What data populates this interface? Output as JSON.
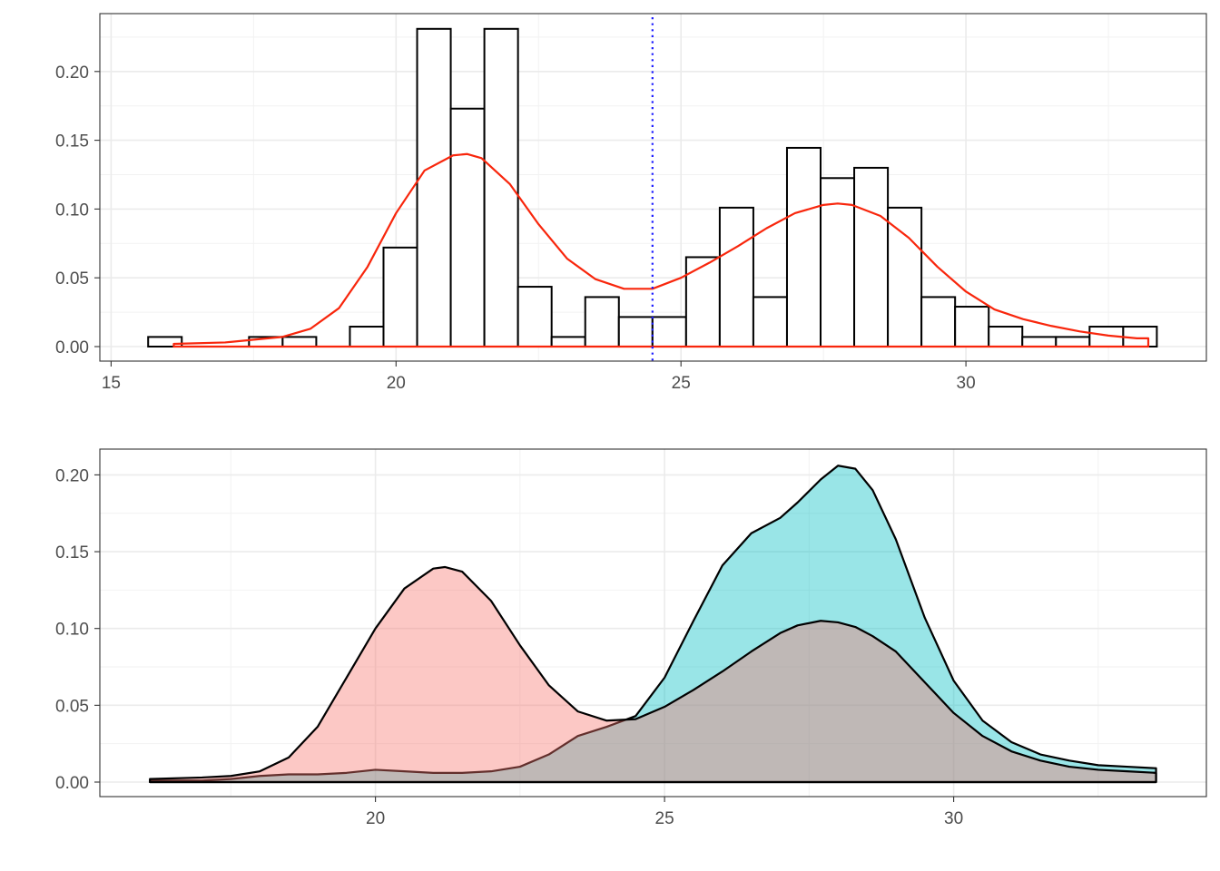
{
  "chart_data": [
    {
      "type": "bar",
      "subtype": "histogram",
      "panel": "top",
      "title": "",
      "xlabel": "",
      "ylabel": "",
      "xlim": [
        15,
        33.5
      ],
      "ylim": [
        0,
        0.23
      ],
      "grid": true,
      "bin_width": 0.59,
      "bins": [
        {
          "x0": 15.65,
          "value": 0.007
        },
        {
          "x0": 17.42,
          "value": 0.007
        },
        {
          "x0": 18.01,
          "value": 0.007
        },
        {
          "x0": 19.19,
          "value": 0.0145
        },
        {
          "x0": 19.78,
          "value": 0.072
        },
        {
          "x0": 20.37,
          "value": 0.231
        },
        {
          "x0": 20.96,
          "value": 0.173
        },
        {
          "x0": 21.55,
          "value": 0.231
        },
        {
          "x0": 22.14,
          "value": 0.0435
        },
        {
          "x0": 22.73,
          "value": 0.007
        },
        {
          "x0": 23.32,
          "value": 0.036
        },
        {
          "x0": 23.91,
          "value": 0.0215
        },
        {
          "x0": 24.5,
          "value": 0.0215
        },
        {
          "x0": 25.09,
          "value": 0.065
        },
        {
          "x0": 25.68,
          "value": 0.101
        },
        {
          "x0": 26.27,
          "value": 0.036
        },
        {
          "x0": 26.86,
          "value": 0.1445
        },
        {
          "x0": 27.45,
          "value": 0.1225
        },
        {
          "x0": 28.04,
          "value": 0.13
        },
        {
          "x0": 28.63,
          "value": 0.101
        },
        {
          "x0": 29.22,
          "value": 0.036
        },
        {
          "x0": 29.81,
          "value": 0.029
        },
        {
          "x0": 30.4,
          "value": 0.0145
        },
        {
          "x0": 30.99,
          "value": 0.007
        },
        {
          "x0": 31.58,
          "value": 0.007
        },
        {
          "x0": 32.17,
          "value": 0.0145
        },
        {
          "x0": 32.76,
          "value": 0.0145
        }
      ],
      "density_curve": {
        "color": "#f8260c",
        "x": [
          16.1,
          17.0,
          18.0,
          18.5,
          19.0,
          19.5,
          20.0,
          20.5,
          21.0,
          21.25,
          21.5,
          22.0,
          22.5,
          23.0,
          23.5,
          24.0,
          24.5,
          25.0,
          25.5,
          26.0,
          26.5,
          27.0,
          27.5,
          27.75,
          28.0,
          28.5,
          29.0,
          29.5,
          30.0,
          30.5,
          31.0,
          31.5,
          32.0,
          32.5,
          33.0,
          33.2
        ],
        "y": [
          0.002,
          0.003,
          0.007,
          0.013,
          0.028,
          0.058,
          0.097,
          0.128,
          0.139,
          0.14,
          0.137,
          0.118,
          0.089,
          0.064,
          0.049,
          0.042,
          0.042,
          0.05,
          0.061,
          0.073,
          0.086,
          0.097,
          0.103,
          0.104,
          0.103,
          0.095,
          0.079,
          0.058,
          0.04,
          0.027,
          0.02,
          0.015,
          0.011,
          0.008,
          0.006,
          0.006
        ]
      },
      "vline": {
        "x": 24.5,
        "color": "#1a1aff",
        "style": "dotted"
      },
      "x_ticks": [
        "15",
        "20",
        "25",
        "30"
      ],
      "y_ticks": [
        "0.00",
        "0.05",
        "0.10",
        "0.15",
        "0.20"
      ]
    },
    {
      "type": "area",
      "subtype": "density",
      "panel": "bottom",
      "title": "",
      "xlabel": "",
      "ylabel": "",
      "xlim": [
        15.8,
        33.8
      ],
      "ylim": [
        0,
        0.21
      ],
      "grid": true,
      "x": [
        16.1,
        17.0,
        17.5,
        18.0,
        18.5,
        19.0,
        19.5,
        20.0,
        20.5,
        21.0,
        21.2,
        21.5,
        22.0,
        22.5,
        23.0,
        23.5,
        24.0,
        24.5,
        25.0,
        25.5,
        26.0,
        26.5,
        27.0,
        27.3,
        27.7,
        28.0,
        28.3,
        28.6,
        29.0,
        29.5,
        30.0,
        30.5,
        31.0,
        31.5,
        32.0,
        32.5,
        33.0,
        33.5
      ],
      "series": [
        {
          "color": "#f8766d",
          "values": [
            0.002,
            0.003,
            0.004,
            0.007,
            0.016,
            0.036,
            0.068,
            0.1,
            0.126,
            0.139,
            0.14,
            0.137,
            0.118,
            0.089,
            0.063,
            0.046,
            0.04,
            0.041,
            0.049,
            0.06,
            0.072,
            0.085,
            0.097,
            0.102,
            0.105,
            0.104,
            0.101,
            0.095,
            0.085,
            0.065,
            0.045,
            0.03,
            0.02,
            0.014,
            0.01,
            0.008,
            0.007,
            0.006
          ]
        },
        {
          "color": "#00bfc4",
          "values": [
            0.001,
            0.001,
            0.002,
            0.004,
            0.005,
            0.005,
            0.006,
            0.008,
            0.007,
            0.006,
            0.006,
            0.006,
            0.007,
            0.01,
            0.018,
            0.03,
            0.036,
            0.043,
            0.068,
            0.105,
            0.141,
            0.162,
            0.172,
            0.182,
            0.197,
            0.206,
            0.204,
            0.19,
            0.158,
            0.107,
            0.066,
            0.04,
            0.026,
            0.018,
            0.014,
            0.011,
            0.01,
            0.009
          ]
        }
      ],
      "x_ticks": [
        "20",
        "25",
        "30"
      ],
      "y_ticks": [
        "0.00",
        "0.05",
        "0.10",
        "0.15",
        "0.20"
      ]
    }
  ]
}
